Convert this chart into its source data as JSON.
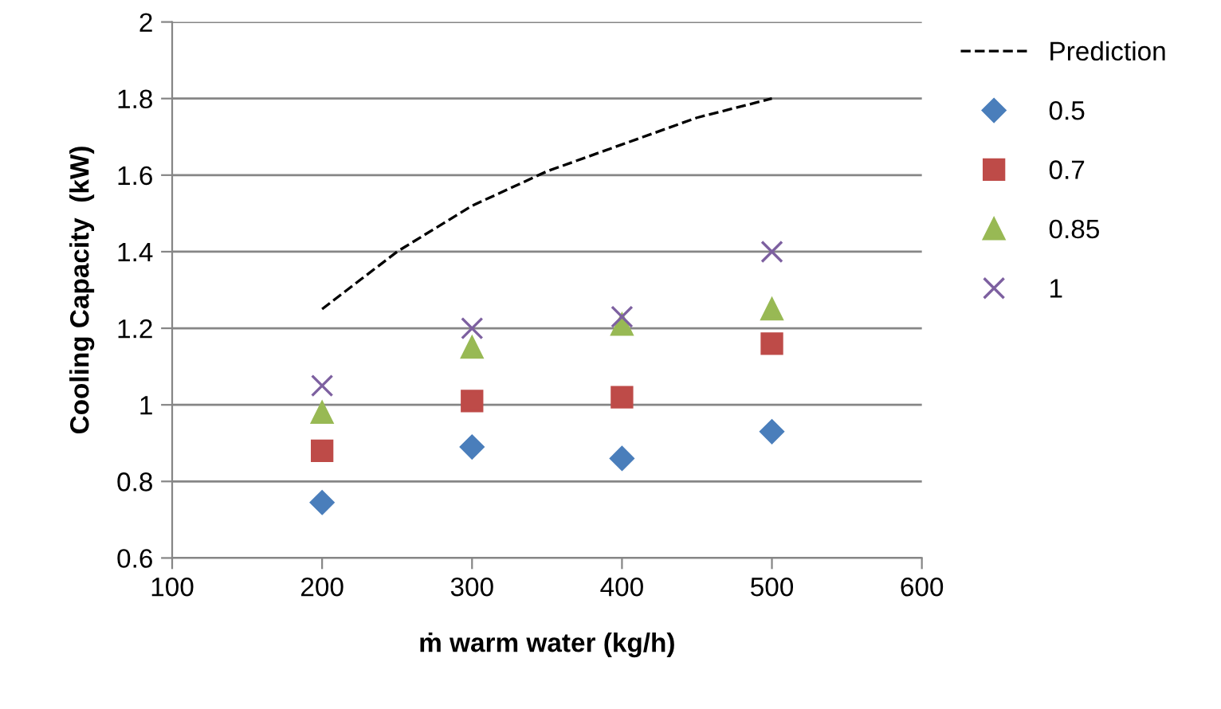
{
  "chart_data": {
    "type": "scatter",
    "xlabel": "ṁ warm water (kg/h)",
    "ylabel": "Cooling Capacity  (kW)",
    "xlim": [
      100,
      600
    ],
    "xticks": [
      100,
      200,
      300,
      400,
      500,
      600
    ],
    "ylim": [
      0.6,
      2
    ],
    "yticks": [
      0.6,
      0.8,
      1,
      1.2,
      1.4,
      1.6,
      1.8,
      2
    ],
    "grid": "y",
    "legend": "right",
    "series": [
      {
        "name": "Prediction",
        "type": "line",
        "color": "#000000",
        "line_style": "dashed",
        "marker": "none",
        "x": [
          200,
          250,
          300,
          350,
          400,
          450,
          500
        ],
        "values": [
          1.25,
          1.4,
          1.52,
          1.61,
          1.68,
          1.75,
          1.8
        ]
      },
      {
        "name": "0.5",
        "color": "#4a7ebb",
        "marker": "diamond",
        "x": [
          200,
          300,
          400,
          500
        ],
        "values": [
          0.745,
          0.89,
          0.86,
          0.93
        ]
      },
      {
        "name": "0.7",
        "color": "#be4b48",
        "marker": "square",
        "x": [
          200,
          300,
          400,
          500
        ],
        "values": [
          0.88,
          1.01,
          1.02,
          1.16
        ]
      },
      {
        "name": "0.85",
        "color": "#98b954",
        "marker": "triangle",
        "x": [
          200,
          300,
          400,
          500
        ],
        "values": [
          0.98,
          1.15,
          1.21,
          1.25
        ]
      },
      {
        "name": "1",
        "color": "#7d60a0",
        "marker": "cross",
        "x": [
          200,
          300,
          400,
          500
        ],
        "values": [
          1.05,
          1.2,
          1.23,
          1.4
        ]
      }
    ]
  }
}
